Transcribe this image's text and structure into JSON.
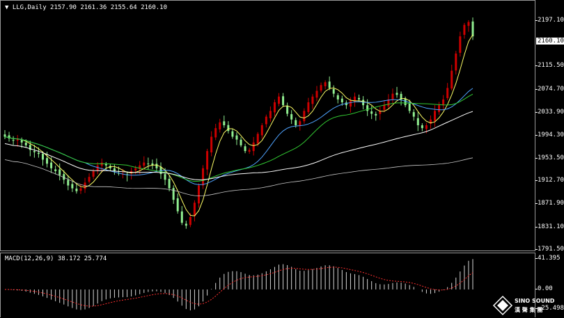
{
  "header": {
    "symbol_line": "LLG,Daily  2157.90 2161.36 2155.64 2160.10",
    "macd_line": "MACD(12,26,9) 38.172 25.774"
  },
  "price_axis": {
    "ticks": [
      "2197.10",
      "2115.50",
      "2074.70",
      "2033.90",
      "1994.30",
      "1953.50",
      "1912.70",
      "1871.90",
      "1831.10",
      "1791.50"
    ],
    "current_price": "2160.10"
  },
  "macd_axis": {
    "ticks": [
      "41.395",
      "0.00",
      "-25.498"
    ]
  },
  "logo": {
    "line1": "SINO SOUND",
    "line2": "漢 聲 集 團"
  },
  "colors": {
    "bull": "#cc0000",
    "bear": "#90ee90",
    "ma_fast": "#ffff66",
    "ma_mid": "#4fa3ff",
    "ma_green": "#33cc33",
    "ma_white": "#ffffff",
    "ma_slow": "#c8c8c8",
    "signal": "#ff3030",
    "hist": "#d8d8d8"
  },
  "chart_data": {
    "type": "candlestick",
    "symbol": "LLG",
    "timeframe": "Daily",
    "ylim": [
      1791.5,
      2210
    ],
    "last": {
      "open": 2157.9,
      "high": 2161.36,
      "low": 2155.64,
      "close": 2160.1
    },
    "closes": [
      1985,
      1982,
      1978,
      1980,
      1975,
      1970,
      1962,
      1958,
      1955,
      1945,
      1938,
      1930,
      1925,
      1918,
      1910,
      1900,
      1895,
      1890,
      1895,
      1905,
      1915,
      1925,
      1935,
      1940,
      1935,
      1930,
      1925,
      1922,
      1920,
      1918,
      1925,
      1930,
      1935,
      1940,
      1938,
      1935,
      1930,
      1920,
      1910,
      1895,
      1875,
      1855,
      1835,
      1830,
      1845,
      1870,
      1900,
      1930,
      1960,
      1985,
      2000,
      2010,
      2005,
      1995,
      1985,
      1980,
      1970,
      1960,
      1962,
      1975,
      1990,
      2005,
      2020,
      2030,
      2045,
      2055,
      2040,
      2025,
      2015,
      2005,
      2012,
      2030,
      2045,
      2055,
      2065,
      2075,
      2080,
      2070,
      2060,
      2050,
      2045,
      2040,
      2048,
      2055,
      2050,
      2040,
      2030,
      2025,
      2022,
      2030,
      2040,
      2050,
      2060,
      2058,
      2050,
      2040,
      2030,
      2020,
      2005,
      2000,
      2005,
      2015,
      2030,
      2040,
      2050,
      2070,
      2100,
      2130,
      2160,
      2180,
      2185,
      2160
    ],
    "macd_signal_hint": "histogram and dotted signal line",
    "macd": {
      "fast": 12,
      "slow": 26,
      "signal": 9,
      "macd": 38.172,
      "signal_value": 25.774,
      "ylim": [
        -25.498,
        41.395
      ]
    }
  }
}
